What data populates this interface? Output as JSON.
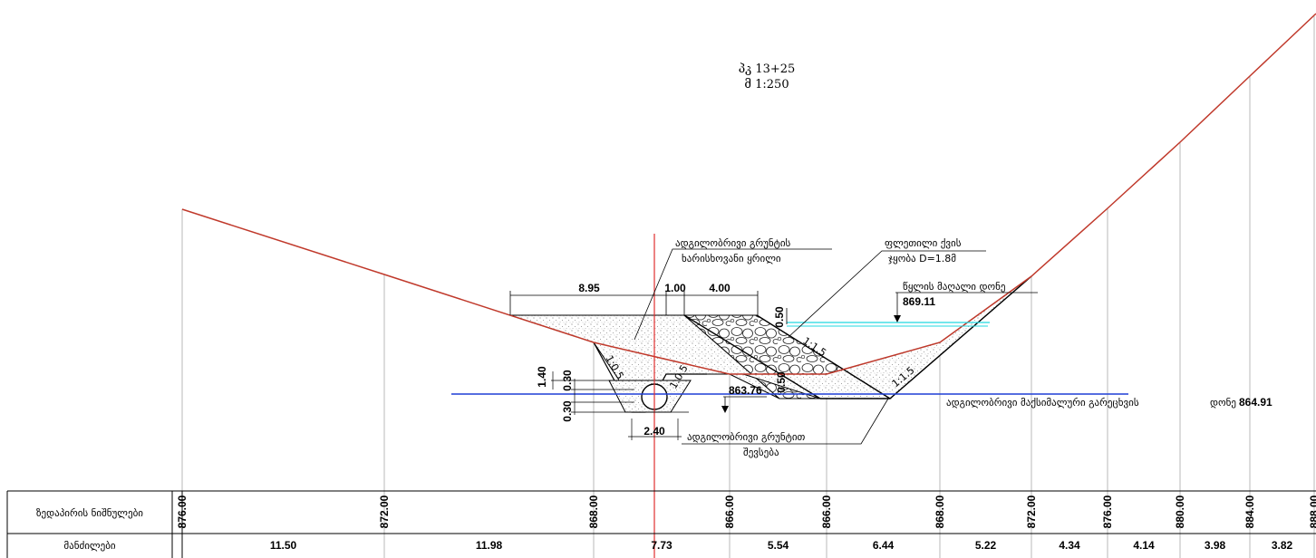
{
  "title": {
    "line1": "პკ  13+25",
    "line2": "მ  1:250"
  },
  "labels": {
    "local_soil_line1": "ადგილობრივი გრუნტის",
    "local_soil_line2": "ხარისხოვანი ყრილი",
    "stone_line1": "ფლეთილი ქვის",
    "stone_line2": "ჯყობა D=1.8მ",
    "water_high": "წყლის მაღალი დონე",
    "water_high_value": "869.11",
    "bottom_level_value": "863.76",
    "max_erosion": "ადგილობრივი მაქსიმალური გარეცხვის",
    "max_erosion_level_word": "დონე",
    "max_erosion_value": "864.91",
    "backfill_line1": "ადგილობრივი გრუნტით",
    "backfill_line2": "შევსება"
  },
  "dimensions": {
    "d895": "8.95",
    "d100": "1.00",
    "d400": "4.00",
    "d050a": "0.50",
    "d050b": "0.50",
    "d140": "1.40",
    "d030a": "0.30",
    "d030b": "0.30",
    "d240": "2.40"
  },
  "slopes": {
    "s1": "1:1.5",
    "s2": "1:1.5",
    "s3": "1:0.5",
    "s4": "1:0.5"
  },
  "table": {
    "row1_label": "ზედაპირის ნიშნულები",
    "row2_label": "მანძილები",
    "elevations": [
      "876.00",
      "872.00",
      "868.00",
      "866.00",
      "866.00",
      "868.00",
      "872.00",
      "876.00",
      "880.00",
      "884.00",
      "888.00"
    ],
    "distances": [
      "11.50",
      "11.98",
      "7.73",
      "5.54",
      "6.44",
      "5.22",
      "4.34",
      "4.14",
      "3.98",
      "3.82"
    ]
  },
  "colors": {
    "ground_line": "#c0392b",
    "axis_line": "#e03030",
    "erosion_line": "#1f3fd6",
    "water_line": "#20d8e0"
  }
}
